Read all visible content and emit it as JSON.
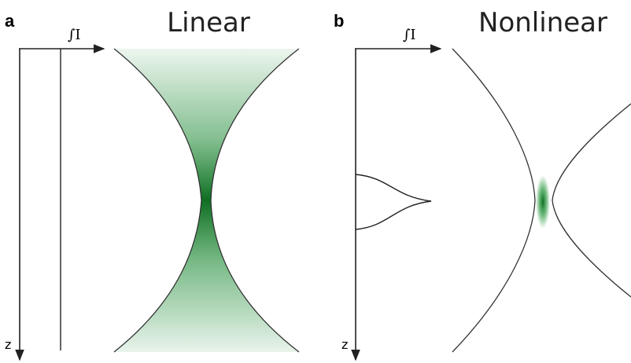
{
  "panels": [
    {
      "label": "a",
      "title": "Linear",
      "x_axis_label": "∫I",
      "z_axis_label": "z"
    },
    {
      "label": "b",
      "title": "Nonlinear",
      "x_axis_label": "∫I",
      "z_axis_label": "z"
    }
  ]
}
